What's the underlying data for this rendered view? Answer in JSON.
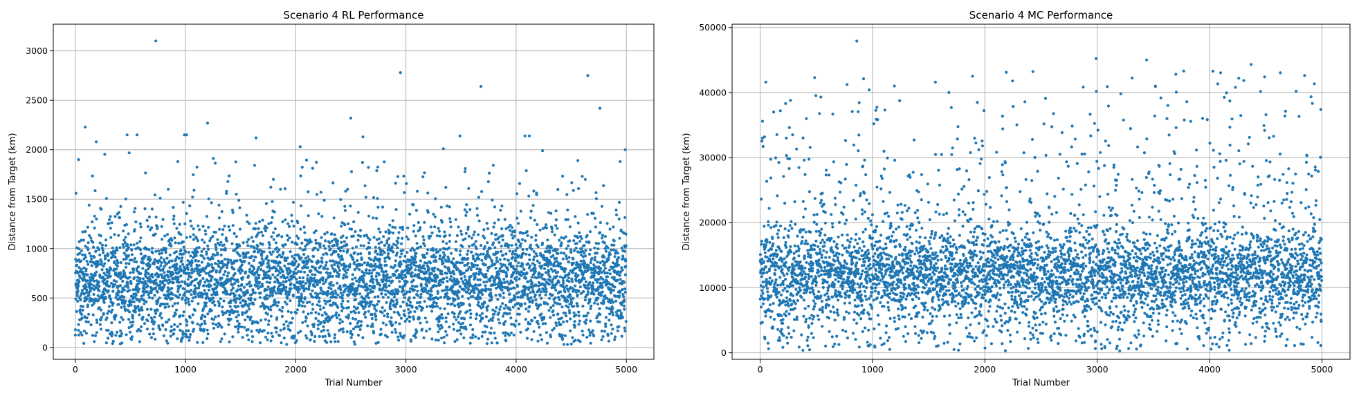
{
  "chart_data": [
    {
      "type": "scatter",
      "title": "Scenario 4 RL Performance",
      "xlabel": "Trial Number",
      "ylabel": "Distance from Target (km)",
      "xlim": [
        -200,
        5250
      ],
      "ylim": [
        -120,
        3270
      ],
      "xticks": [
        0,
        1000,
        2000,
        3000,
        4000,
        5000
      ],
      "yticks": [
        0,
        500,
        1000,
        1500,
        2000,
        2500,
        3000
      ],
      "grid": true,
      "color": "#1f77b4",
      "n_points": 5000,
      "bulk_distribution": {
        "center": 700,
        "spread": 300,
        "min": 30,
        "max": 2000
      },
      "outliers": [
        {
          "x": 730,
          "y": 3100
        },
        {
          "x": 2950,
          "y": 2780
        },
        {
          "x": 4650,
          "y": 2750
        },
        {
          "x": 3680,
          "y": 2640
        },
        {
          "x": 4760,
          "y": 2420
        },
        {
          "x": 2500,
          "y": 2320
        },
        {
          "x": 1200,
          "y": 2270
        },
        {
          "x": 90,
          "y": 2230
        },
        {
          "x": 470,
          "y": 2150
        },
        {
          "x": 560,
          "y": 2150
        },
        {
          "x": 990,
          "y": 2150
        },
        {
          "x": 1010,
          "y": 2150
        },
        {
          "x": 3490,
          "y": 2140
        },
        {
          "x": 4080,
          "y": 2140
        },
        {
          "x": 4120,
          "y": 2140
        },
        {
          "x": 2610,
          "y": 2130
        },
        {
          "x": 1640,
          "y": 2120
        },
        {
          "x": 190,
          "y": 2080
        },
        {
          "x": 2040,
          "y": 2030
        },
        {
          "x": 3340,
          "y": 2010
        },
        {
          "x": 4990,
          "y": 2000
        },
        {
          "x": 4240,
          "y": 1990
        },
        {
          "x": 30,
          "y": 1900
        },
        {
          "x": 930,
          "y": 1880
        },
        {
          "x": 4560,
          "y": 1890
        }
      ]
    },
    {
      "type": "scatter",
      "title": "Scenario 4 MC Performance",
      "xlabel": "Trial Number",
      "ylabel": "Distance from Target (km)",
      "xlim": [
        -250,
        5250
      ],
      "ylim": [
        -1000,
        50500
      ],
      "xticks": [
        0,
        1000,
        2000,
        3000,
        4000,
        5000
      ],
      "yticks": [
        0,
        10000,
        20000,
        30000,
        40000,
        50000
      ],
      "grid": true,
      "color": "#1f77b4",
      "n_points": 5000,
      "bulk_distribution": {
        "center": 12000,
        "spread": 4000,
        "min": 300,
        "max": 45000
      },
      "outliers": [
        {
          "x": 860,
          "y": 47900
        },
        {
          "x": 2990,
          "y": 45200
        },
        {
          "x": 3440,
          "y": 45000
        },
        {
          "x": 4370,
          "y": 44300
        },
        {
          "x": 2190,
          "y": 43100
        },
        {
          "x": 3770,
          "y": 43300
        },
        {
          "x": 1890,
          "y": 42500
        },
        {
          "x": 4260,
          "y": 42200
        },
        {
          "x": 4490,
          "y": 42400
        },
        {
          "x": 3700,
          "y": 42800
        },
        {
          "x": 920,
          "y": 42100
        },
        {
          "x": 50,
          "y": 41600
        },
        {
          "x": 1560,
          "y": 41600
        },
        {
          "x": 970,
          "y": 40400
        },
        {
          "x": 3210,
          "y": 39800
        },
        {
          "x": 4770,
          "y": 40200
        },
        {
          "x": 1680,
          "y": 40000
        },
        {
          "x": 540,
          "y": 39300
        },
        {
          "x": 2540,
          "y": 39100
        },
        {
          "x": 270,
          "y": 38800
        },
        {
          "x": 3090,
          "y": 40900
        },
        {
          "x": 4180,
          "y": 38700
        },
        {
          "x": 1110,
          "y": 37300
        },
        {
          "x": 4990,
          "y": 37400
        },
        {
          "x": 120,
          "y": 37000
        },
        {
          "x": 180,
          "y": 37200
        },
        {
          "x": 20,
          "y": 33000
        },
        {
          "x": 3200,
          "y": 300
        }
      ]
    }
  ]
}
